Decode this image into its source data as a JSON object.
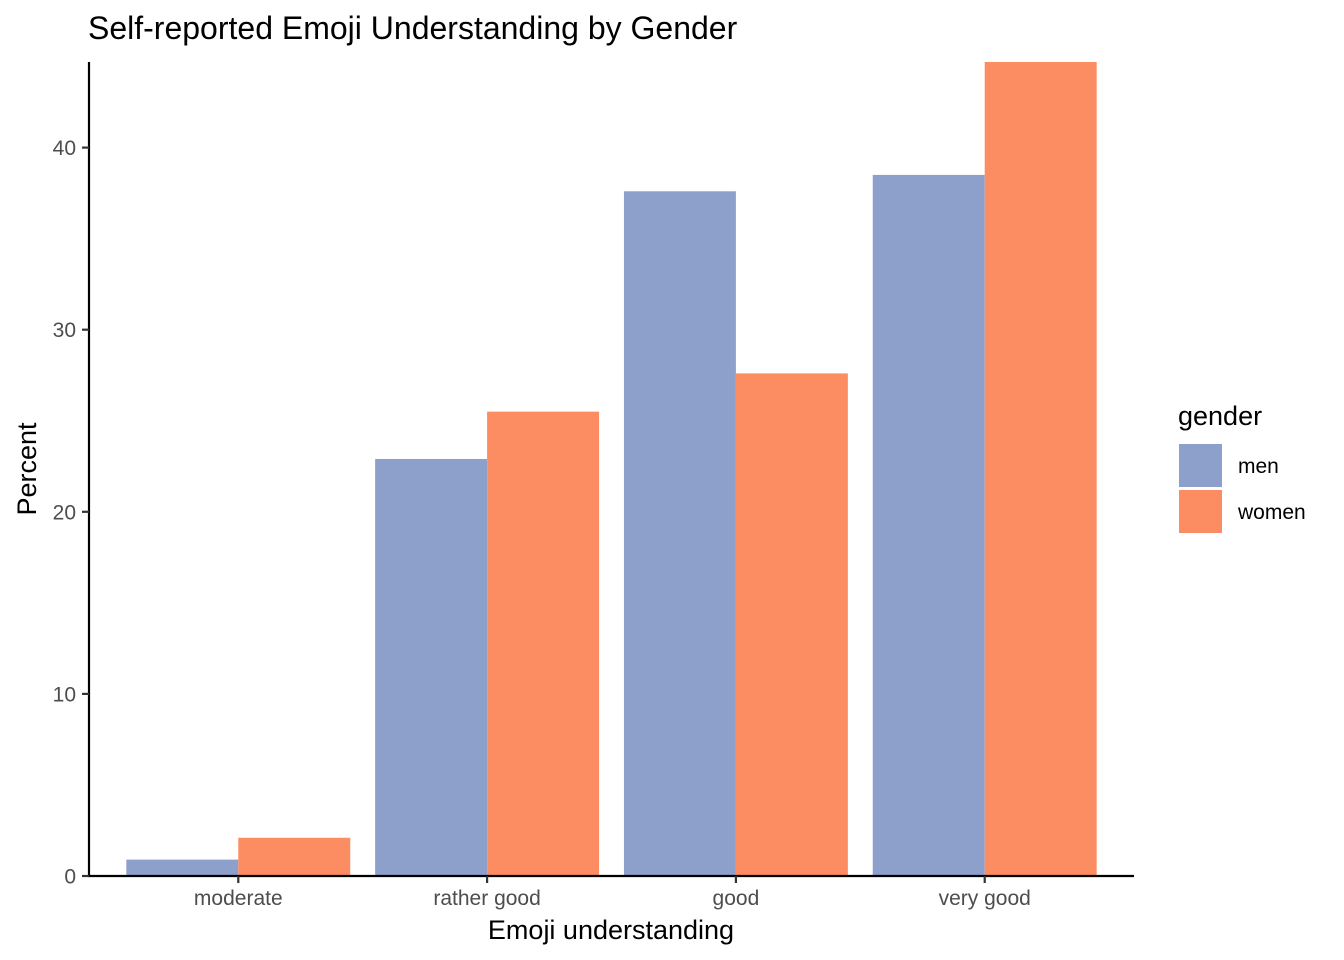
{
  "chart_data": {
    "type": "bar",
    "title": "Self-reported Emoji Understanding by Gender",
    "xlabel": "Emoji understanding",
    "ylabel": "Percent",
    "categories": [
      "moderate",
      "rather good",
      "good",
      "very good"
    ],
    "series": [
      {
        "name": "men",
        "color": "#8da0cb",
        "values": [
          0.9,
          22.9,
          37.6,
          38.5
        ]
      },
      {
        "name": "women",
        "color": "#fc8d62",
        "values": [
          2.1,
          25.5,
          27.6,
          44.7
        ]
      }
    ],
    "ylim": [
      0,
      44.7
    ],
    "yticks": [
      0,
      10,
      20,
      30,
      40
    ],
    "grid": false,
    "legend": {
      "title": "gender",
      "placement": "right"
    }
  }
}
